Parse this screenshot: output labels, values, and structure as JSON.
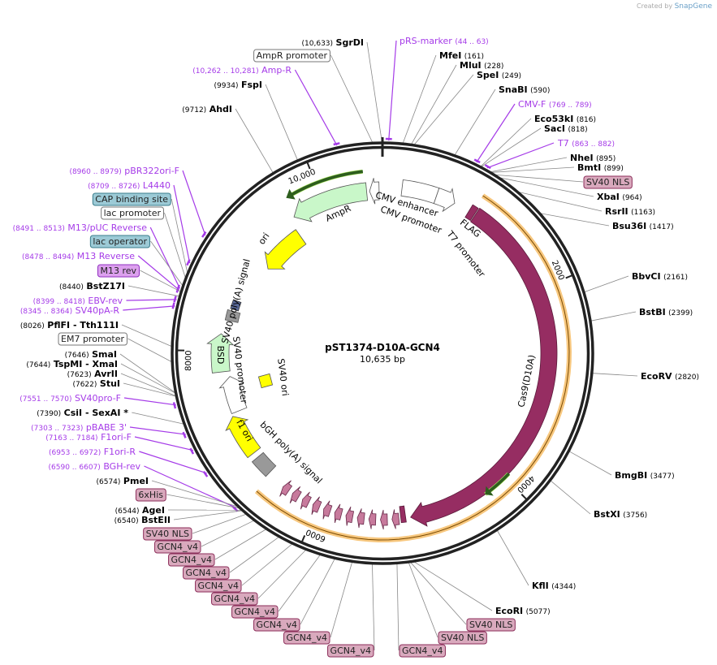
{
  "credit": {
    "prefix": "Created by",
    "brand": "SnapGene"
  },
  "plasmid": {
    "name": "pST1374-D10A-GCN4",
    "length": "10,635 bp",
    "total_bp": 10635
  },
  "ticks": [
    "2000",
    "4000",
    "6000",
    "8000",
    "10,000"
  ],
  "colors": {
    "primer": "#a53be8",
    "nls_fill": "#d9a9bd",
    "nls_stroke": "#8c2e5a",
    "lac_fill": "#9ccad6",
    "lac_stroke": "#3a7d8c",
    "m13_fill": "#dca0ee",
    "m13_stroke": "#9030c0",
    "cas9": "#962d62",
    "orf": "#f7c77e",
    "ampr": "#c9f7c9",
    "ori": "#ffff00"
  },
  "labels": [
    {
      "kind": "enzyme",
      "name": "SgrDI",
      "pos": "(10,633)"
    },
    {
      "kind": "primer",
      "name": "pRS-marker",
      "pos": "(44 .. 63)"
    },
    {
      "kind": "enzyme",
      "name": "MfeI",
      "pos": "(161)"
    },
    {
      "kind": "enzyme",
      "name": "MluI",
      "pos": "(228)"
    },
    {
      "kind": "enzyme",
      "name": "SpeI",
      "pos": "(249)"
    },
    {
      "kind": "enzyme",
      "name": "SnaBI",
      "pos": "(590)"
    },
    {
      "kind": "primer",
      "name": "CMV-F",
      "pos": "(769 .. 789)"
    },
    {
      "kind": "enzyme",
      "name": "Eco53kI",
      "pos": "(816)"
    },
    {
      "kind": "enzyme",
      "name": "SacI",
      "pos": "(818)"
    },
    {
      "kind": "primer",
      "name": "T7",
      "pos": "(863 .. 882)"
    },
    {
      "kind": "enzyme",
      "name": "NheI",
      "pos": "(895)"
    },
    {
      "kind": "enzyme",
      "name": "BmtI",
      "pos": "(899)"
    },
    {
      "kind": "nls",
      "name": "SV40 NLS"
    },
    {
      "kind": "enzyme",
      "name": "XbaI",
      "pos": "(964)"
    },
    {
      "kind": "enzyme",
      "name": "RsrII",
      "pos": "(1163)"
    },
    {
      "kind": "enzyme",
      "name": "Bsu36I",
      "pos": "(1417)"
    },
    {
      "kind": "enzyme",
      "name": "BbvCI",
      "pos": "(2161)"
    },
    {
      "kind": "enzyme",
      "name": "BstBI",
      "pos": "(2399)"
    },
    {
      "kind": "enzyme",
      "name": "EcoRV",
      "pos": "(2820)"
    },
    {
      "kind": "enzyme",
      "name": "BmgBI",
      "pos": "(3477)"
    },
    {
      "kind": "enzyme",
      "name": "BstXI",
      "pos": "(3756)"
    },
    {
      "kind": "enzyme",
      "name": "KflI",
      "pos": "(4344)"
    },
    {
      "kind": "enzyme",
      "name": "EcoRI",
      "pos": "(5077)"
    },
    {
      "kind": "nls",
      "name": "SV40 NLS"
    },
    {
      "kind": "nls",
      "name": "SV40 NLS"
    },
    {
      "kind": "nls",
      "name": "GCN4_v4"
    },
    {
      "kind": "white",
      "name": "AmpR promoter"
    },
    {
      "kind": "primer",
      "name": "Amp-R",
      "pos": "(10,262 .. 10,281)"
    },
    {
      "kind": "enzyme",
      "name": "FspI",
      "pos": "(9934)"
    },
    {
      "kind": "enzyme",
      "name": "AhdI",
      "pos": "(9712)"
    },
    {
      "kind": "primer",
      "name": "pBR322ori-F",
      "pos": "(8960 .. 8979)"
    },
    {
      "kind": "primer",
      "name": "L4440",
      "pos": "(8709 .. 8726)"
    },
    {
      "kind": "lac",
      "name": "CAP binding site"
    },
    {
      "kind": "white",
      "name": "lac promoter"
    },
    {
      "kind": "primer",
      "name": "M13/pUC Reverse",
      "pos": "(8491 .. 8513)"
    },
    {
      "kind": "lac",
      "name": "lac operator"
    },
    {
      "kind": "primer",
      "name": "M13 Reverse",
      "pos": "(8478 .. 8494)"
    },
    {
      "kind": "m13",
      "name": "M13 rev"
    },
    {
      "kind": "enzyme",
      "name": "BstZ17I",
      "pos": "(8440)"
    },
    {
      "kind": "primer",
      "name": "EBV-rev",
      "pos": "(8399 .. 8418)"
    },
    {
      "kind": "primer",
      "name": "SV40pA-R",
      "pos": "(8345 .. 8364)"
    },
    {
      "kind": "enzyme",
      "name": "PflFI   - Tth111I",
      "pos": "(8026)"
    },
    {
      "kind": "white",
      "name": "EM7 promoter"
    },
    {
      "kind": "enzyme",
      "name": "SmaI",
      "pos": "(7646)"
    },
    {
      "kind": "enzyme",
      "name": "TspMI   - XmaI",
      "pos": "(7644)"
    },
    {
      "kind": "enzyme",
      "name": "AvrII",
      "pos": "(7623)"
    },
    {
      "kind": "enzyme",
      "name": "StuI",
      "pos": "(7622)"
    },
    {
      "kind": "primer",
      "name": "SV40pro-F",
      "pos": "(7551 .. 7570)"
    },
    {
      "kind": "enzyme",
      "name": "CsiI   - SexAI *",
      "pos": "(7390)"
    },
    {
      "kind": "primer",
      "name": "pBABE 3'",
      "pos": "(7303 .. 7323)"
    },
    {
      "kind": "primer",
      "name": "F1ori-F",
      "pos": "(7163 .. 7184)"
    },
    {
      "kind": "primer",
      "name": "F1ori-R",
      "pos": "(6953 .. 6972)"
    },
    {
      "kind": "primer",
      "name": "BGH-rev",
      "pos": "(6590 .. 6607)"
    },
    {
      "kind": "enzyme",
      "name": "PmeI",
      "pos": "(6574)"
    },
    {
      "kind": "nls",
      "name": "6xHis"
    },
    {
      "kind": "enzyme",
      "name": "AgeI",
      "pos": "(6544)"
    },
    {
      "kind": "enzyme",
      "name": "BstEII",
      "pos": "(6540)"
    },
    {
      "kind": "nls",
      "name": "SV40 NLS"
    },
    {
      "kind": "nls",
      "name": "GCN4_v4"
    },
    {
      "kind": "nls",
      "name": "GCN4_v4"
    },
    {
      "kind": "nls",
      "name": "GCN4_v4"
    },
    {
      "kind": "nls",
      "name": "GCN4_v4"
    },
    {
      "kind": "nls",
      "name": "GCN4_v4"
    },
    {
      "kind": "nls",
      "name": "GCN4_v4"
    },
    {
      "kind": "nls",
      "name": "GCN4_v4"
    },
    {
      "kind": "nls",
      "name": "GCN4_v4"
    },
    {
      "kind": "nls",
      "name": "GCN4_v4"
    }
  ],
  "features": {
    "ampr": "AmpR",
    "cmv_enh": "CMV enhancer",
    "cmv_pro": "CMV promoter",
    "flag": "FLAG",
    "t7_pro": "T7 promoter",
    "cas9": "Cas9(D10A)",
    "sv40pa": "SV40 poly(A) signal",
    "ori": "ori",
    "bsd": "BSD",
    "sv40pro": "SV40 promoter",
    "sv40ori": "SV40 ori",
    "bgh": "bGH poly(A) signal",
    "f1": "f1 ori"
  }
}
